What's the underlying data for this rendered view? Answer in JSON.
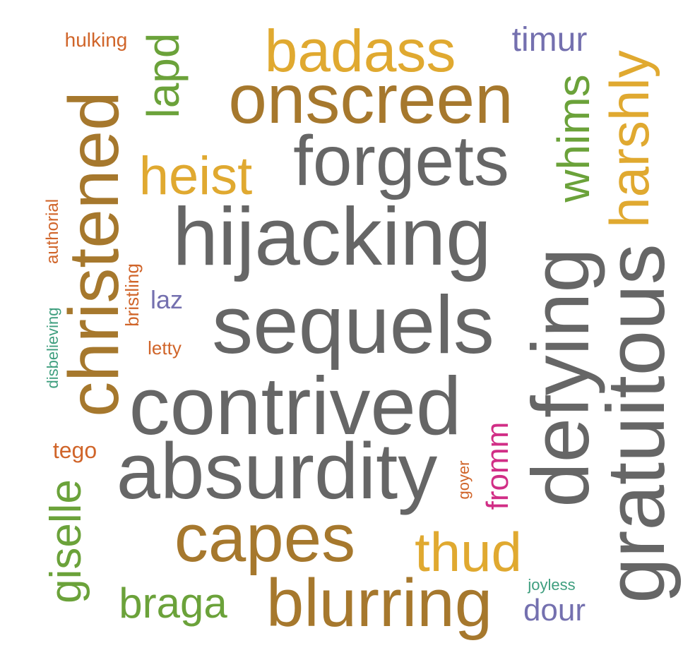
{
  "palette": {
    "gray": "#666666",
    "bronze": "#A6782D",
    "gold": "#E0A930",
    "olive_green": "#6BA23A",
    "orange": "#D0652A",
    "slate_blue": "#7470AF",
    "teal": "#3E9E7E",
    "magenta": "#D12E86"
  },
  "words": [
    {
      "text": "hijacking",
      "color": "#666666"
    },
    {
      "text": "sequels",
      "color": "#666666"
    },
    {
      "text": "contrived",
      "color": "#666666"
    },
    {
      "text": "absurdity",
      "color": "#666666"
    },
    {
      "text": "forgets",
      "color": "#666666"
    },
    {
      "text": "defying",
      "color": "#666666"
    },
    {
      "text": "gratuitous",
      "color": "#666666"
    },
    {
      "text": "onscreen",
      "color": "#A6782D"
    },
    {
      "text": "christened",
      "color": "#A6782D"
    },
    {
      "text": "capes",
      "color": "#A6782D"
    },
    {
      "text": "blurring",
      "color": "#A6782D"
    },
    {
      "text": "badass",
      "color": "#E0A930"
    },
    {
      "text": "heist",
      "color": "#E0A930"
    },
    {
      "text": "harshly",
      "color": "#E0A930"
    },
    {
      "text": "thud",
      "color": "#E0A930"
    },
    {
      "text": "lapd",
      "color": "#6BA23A"
    },
    {
      "text": "whims",
      "color": "#6BA23A"
    },
    {
      "text": "giselle",
      "color": "#6BA23A"
    },
    {
      "text": "braga",
      "color": "#6BA23A"
    },
    {
      "text": "timur",
      "color": "#7470AF"
    },
    {
      "text": "laz",
      "color": "#7470AF"
    },
    {
      "text": "dour",
      "color": "#7470AF"
    },
    {
      "text": "fromm",
      "color": "#D12E86"
    },
    {
      "text": "hulking",
      "color": "#D0652A"
    },
    {
      "text": "authorial",
      "color": "#D0652A"
    },
    {
      "text": "bristling",
      "color": "#D0652A"
    },
    {
      "text": "letty",
      "color": "#D0652A"
    },
    {
      "text": "tego",
      "color": "#D0652A"
    },
    {
      "text": "goyer",
      "color": "#D0652A"
    },
    {
      "text": "disbelieving",
      "color": "#3E9E7E"
    },
    {
      "text": "joyless",
      "color": "#3E9E7E"
    }
  ]
}
